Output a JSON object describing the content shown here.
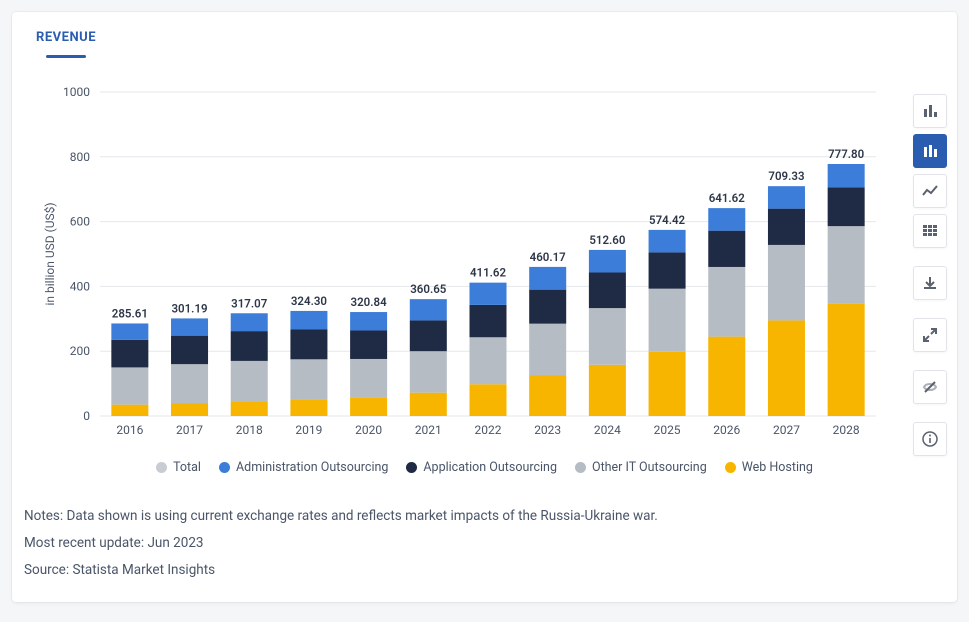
{
  "tab": {
    "label": "REVENUE"
  },
  "chart": {
    "type": "stacked-bar",
    "y_axis_label": "in billion USD (US$)",
    "ylim": [
      0,
      1000
    ],
    "ytick_step": 200,
    "categories": [
      "2016",
      "2017",
      "2018",
      "2019",
      "2020",
      "2021",
      "2022",
      "2023",
      "2024",
      "2025",
      "2026",
      "2027",
      "2028"
    ],
    "bar_totals": [
      285.61,
      301.19,
      317.07,
      324.3,
      320.84,
      360.65,
      411.62,
      460.17,
      512.6,
      574.42,
      641.62,
      709.33,
      777.8
    ],
    "segments_order": [
      "web_hosting",
      "other_it",
      "application",
      "administration"
    ],
    "segment_colors": {
      "web_hosting": "#f7b500",
      "other_it": "#b6bcc4",
      "application": "#1f2a44",
      "administration": "#3b7dd8"
    },
    "data": {
      "web_hosting": [
        35,
        40,
        45,
        52,
        58,
        72,
        98,
        125,
        158,
        198,
        245,
        295,
        348
      ],
      "other_it": [
        115,
        120,
        125,
        123,
        118,
        128,
        145,
        160,
        175,
        195,
        215,
        233,
        238
      ],
      "application": [
        85,
        88,
        92,
        92,
        88,
        95,
        100,
        105,
        110,
        112,
        112,
        112,
        120
      ],
      "administration": [
        50.61,
        53.19,
        55.07,
        57.3,
        56.84,
        65.65,
        68.62,
        70.17,
        69.6,
        69.42,
        69.62,
        69.33,
        71.8
      ]
    },
    "bar_width_ratio": 0.62,
    "plot_bg": "#ffffff",
    "grid_color": "#e5e7eb",
    "label_fontsize": 12,
    "barlabel_fontweight": 600
  },
  "legend": {
    "items": [
      {
        "key": "total",
        "label": "Total",
        "color": "#c9ccd2"
      },
      {
        "key": "administration",
        "label": "Administration Outsourcing",
        "color": "#3b7dd8"
      },
      {
        "key": "application",
        "label": "Application Outsourcing",
        "color": "#1f2a44"
      },
      {
        "key": "other_it",
        "label": "Other IT Outsourcing",
        "color": "#b6bcc4"
      },
      {
        "key": "web_hosting",
        "label": "Web Hosting",
        "color": "#f7b500"
      }
    ]
  },
  "notes": {
    "line1": "Notes: Data shown is using current exchange rates and reflects market impacts of the Russia-Ukraine war.",
    "line2": "Most recent update: Jun 2023",
    "line3": "Source: Statista Market Insights"
  },
  "toolbar": {
    "buttons": [
      {
        "name": "bar-chart-icon",
        "active": false
      },
      {
        "name": "stacked-bar-icon",
        "active": true
      },
      {
        "name": "line-chart-icon",
        "active": false
      },
      {
        "name": "table-icon",
        "active": false
      },
      {
        "gap": true
      },
      {
        "name": "download-icon",
        "active": false
      },
      {
        "gap": true
      },
      {
        "name": "expand-icon",
        "active": false
      },
      {
        "gap": true
      },
      {
        "name": "hide-icon",
        "active": false
      },
      {
        "gap": true
      },
      {
        "name": "info-icon",
        "active": false
      }
    ]
  }
}
